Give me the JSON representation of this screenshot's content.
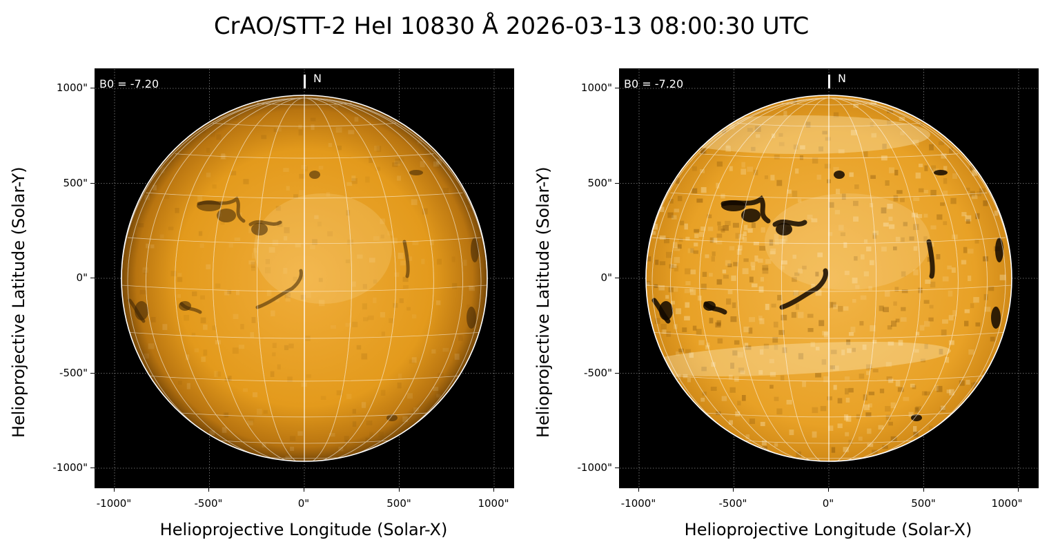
{
  "title": "CrAO/STT-2 HeI 10830 Å 2026-03-13 08:00:30 UTC",
  "axes": {
    "xlabel": "Helioprojective Longitude (Solar-X)",
    "ylabel": "Helioprojective Latitude (Solar-Y)",
    "x_ticks": [
      "-1000\"",
      "-500\"",
      "0\"",
      "500\"",
      "1000\""
    ],
    "y_ticks": [
      "1000\"",
      "500\"",
      "0\"",
      "-500\"",
      "-1000\""
    ]
  },
  "annotations": {
    "b0": "B0 = -7.20",
    "north": "N"
  },
  "colors": {
    "disk_base": "#e39a1c",
    "disk_limb": "#7a4a08",
    "grid": "#ffffff",
    "background": "#000000"
  },
  "panels": [
    {
      "id": "left",
      "variant": "smooth"
    },
    {
      "id": "right",
      "variant": "enhanced"
    }
  ]
}
